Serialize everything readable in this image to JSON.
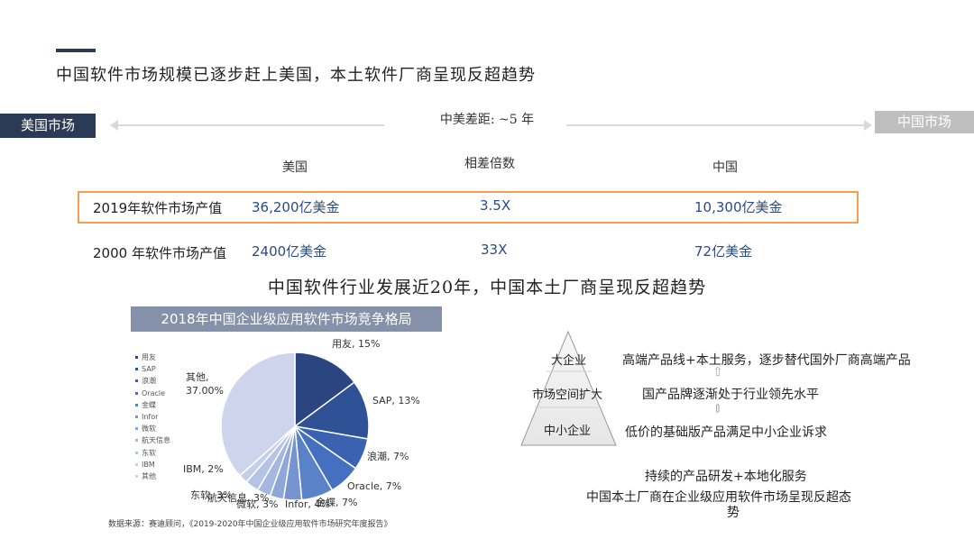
{
  "title": "中国软件市场规模已逐步赶上美国，本土软件厂商呈现反超趋势",
  "comparison": {
    "us_market_tag": "美国市场",
    "cn_market_tag": "中国市场",
    "gap_label": "中美差距: ~5 年",
    "headers": [
      "美国",
      "相差倍数",
      "中国"
    ],
    "rows": [
      {
        "label": "2019年软件市场产值",
        "us": "36,200亿美金",
        "ratio": "3.5X",
        "cn": "10,300亿美金",
        "highlighted": true
      },
      {
        "label": "2000 年软件市场产值",
        "us": "2400亿美金",
        "ratio": "33X",
        "cn": "72亿美金",
        "highlighted": false
      }
    ]
  },
  "subtitle": "中国软件行业发展近20年，中国本土厂商呈现反超趋势",
  "chart_data": {
    "type": "pie",
    "title": "2018年中国企业级应用软件市场竞争格局",
    "slices": [
      {
        "name": "用友",
        "value": 15,
        "label": "用友, 15%",
        "color": "#2b4580"
      },
      {
        "name": "SAP",
        "value": 13,
        "label": "SAP, 13%",
        "color": "#2f5196"
      },
      {
        "name": "浪潮",
        "value": 7,
        "label": "浪潮, 7%",
        "color": "#3a62b0"
      },
      {
        "name": "Oracle",
        "value": 7,
        "label": "Oracle, 7%",
        "color": "#4570c0"
      },
      {
        "name": "金蝶",
        "value": 7,
        "label": "金蝶, 7%",
        "color": "#5a82c8"
      },
      {
        "name": "Infor",
        "value": 4,
        "label": "Infor, 4%",
        "color": "#7594d0"
      },
      {
        "name": "微软",
        "value": 3,
        "label": "微软, 3%",
        "color": "#8fa7d8"
      },
      {
        "name": "航天信息",
        "value": 3,
        "label": "航天信息, 3%",
        "color": "#a4b7df"
      },
      {
        "name": "东软",
        "value": 3,
        "label": "东软, 3%",
        "color": "#b5c4e5"
      },
      {
        "name": "IBM",
        "value": 2,
        "label": "IBM, 2%",
        "color": "#c4d0ea"
      },
      {
        "name": "其他",
        "value": 37,
        "label": "其他, 37.00%",
        "color": "#cdd4eb"
      }
    ],
    "legend_placement": "left"
  },
  "source": "数据来源：赛迪顾问，《2019-2020年中国企业级应用软件市场研究年度报告》",
  "pyramid": {
    "top": "大企业",
    "middle": "市场空间扩大",
    "bottom": "中小企业"
  },
  "right_texts": {
    "line1": "高端产品线+本土服务，逐步替代国外厂商高端产品",
    "line2": "国产品牌逐渐处于行业领先水平",
    "line3": "低价的基础版产品满足中小企业诉求",
    "line4": "持续的产品研发+本地化服务",
    "line5": "中国本土厂商在企业级应用软件市场呈现反超态",
    "line6": "势"
  }
}
